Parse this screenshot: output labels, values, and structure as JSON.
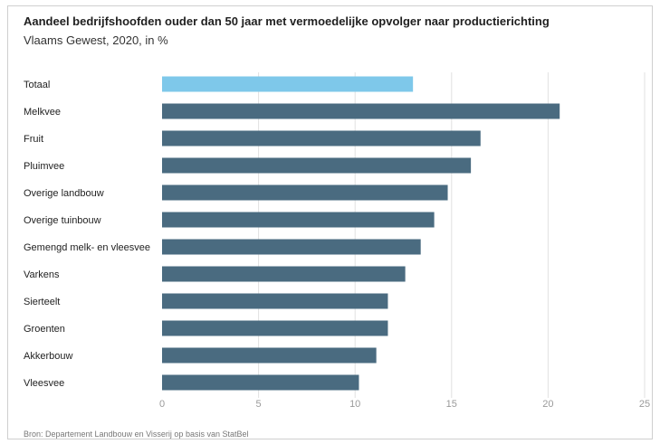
{
  "header": {
    "title": "Aandeel bedrijfshoofden ouder dan 50 jaar met vermoedelijke opvolger naar productierichting",
    "subtitle": "Vlaams Gewest, 2020, in %"
  },
  "footer": {
    "source": "Bron: Departement Landbouw en Visserij op basis van StatBel"
  },
  "colors": {
    "highlight": "#7ec8ea",
    "bar": "#4a6b80",
    "grid": "#e2e2e2",
    "tick": "#9a9a9a"
  },
  "chart_data": {
    "type": "bar",
    "orientation": "horizontal",
    "categories": [
      "Totaal",
      "Melkvee",
      "Fruit",
      "Pluimvee",
      "Overige landbouw",
      "Overige tuinbouw",
      "Gemengd melk- en vleesvee",
      "Varkens",
      "Sierteelt",
      "Groenten",
      "Akkerbouw",
      "Vleesvee"
    ],
    "values": [
      13.0,
      20.6,
      16.5,
      16.0,
      14.8,
      14.1,
      13.4,
      12.6,
      11.7,
      11.7,
      11.1,
      10.2
    ],
    "highlight_index": 0,
    "xlim": [
      0,
      25
    ],
    "xticks": [
      0,
      5,
      10,
      15,
      20,
      25
    ],
    "grid": "vertical",
    "title": "Aandeel bedrijfshoofden ouder dan 50 jaar met vermoedelijke opvolger naar productierichting",
    "xlabel": "",
    "ylabel": ""
  }
}
